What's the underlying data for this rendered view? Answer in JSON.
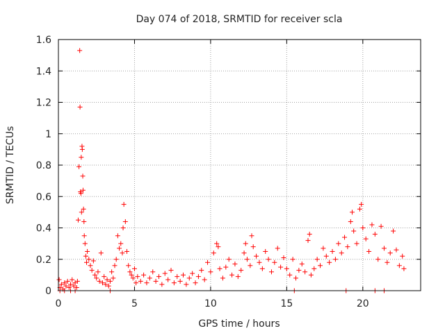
{
  "chart_data": {
    "type": "scatter",
    "title": "Day 074 of 2018, SRMTID for receiver scla",
    "xlabel": "GPS time / hours",
    "ylabel": "SRMTID / TECUs",
    "xlim": [
      0,
      23.8
    ],
    "ylim": [
      0,
      1.6
    ],
    "x_ticks": [
      0,
      5,
      10,
      15,
      20
    ],
    "x_tick_labels": [
      "0",
      "5",
      "10",
      "15",
      "20"
    ],
    "y_ticks": [
      0,
      0.2,
      0.4,
      0.6,
      0.8,
      1,
      1.2,
      1.4,
      1.6
    ],
    "y_tick_labels": [
      "0",
      "0.2",
      "0.4",
      "0.6",
      "0.8",
      "1",
      "1.2",
      "1.4",
      "1.6"
    ],
    "grid": true,
    "marker": "+",
    "color": "#ff0000",
    "series": [
      {
        "name": "SRMTID",
        "points": [
          [
            0.05,
            0.07
          ],
          [
            0.1,
            0.02
          ],
          [
            0.2,
            0.04
          ],
          [
            0.3,
            0.01
          ],
          [
            0.4,
            0.05
          ],
          [
            0.5,
            0.03
          ],
          [
            0.6,
            0.06
          ],
          [
            0.7,
            0.02
          ],
          [
            0.8,
            0.04
          ],
          [
            0.9,
            0.07
          ],
          [
            1.0,
            0.03
          ],
          [
            1.1,
            0.05
          ],
          [
            1.2,
            0.02
          ],
          [
            1.25,
            0.06
          ],
          [
            1.3,
            0.45
          ],
          [
            1.35,
            0.79
          ],
          [
            1.4,
            1.53
          ],
          [
            1.42,
            1.17
          ],
          [
            1.45,
            0.63
          ],
          [
            1.48,
            0.62
          ],
          [
            1.5,
            0.85
          ],
          [
            1.52,
            0.5
          ],
          [
            1.55,
            0.92
          ],
          [
            1.57,
            0.9
          ],
          [
            1.6,
            0.73
          ],
          [
            1.62,
            0.64
          ],
          [
            1.65,
            0.52
          ],
          [
            1.68,
            0.44
          ],
          [
            1.7,
            0.35
          ],
          [
            1.75,
            0.3
          ],
          [
            1.8,
            0.22
          ],
          [
            1.85,
            0.18
          ],
          [
            1.9,
            0.25
          ],
          [
            2.0,
            0.2
          ],
          [
            2.1,
            0.16
          ],
          [
            2.2,
            0.13
          ],
          [
            2.3,
            0.19
          ],
          [
            2.4,
            0.1
          ],
          [
            2.5,
            0.08
          ],
          [
            2.6,
            0.12
          ],
          [
            2.7,
            0.06
          ],
          [
            2.8,
            0.24
          ],
          [
            2.9,
            0.05
          ],
          [
            3.0,
            0.09
          ],
          [
            3.1,
            0.04
          ],
          [
            3.2,
            0.07
          ],
          [
            3.3,
            0.03
          ],
          [
            3.4,
            0.06
          ],
          [
            3.5,
            0.12
          ],
          [
            3.6,
            0.08
          ],
          [
            3.7,
            0.16
          ],
          [
            3.8,
            0.2
          ],
          [
            3.9,
            0.35
          ],
          [
            4.0,
            0.27
          ],
          [
            4.1,
            0.3
          ],
          [
            4.2,
            0.24
          ],
          [
            4.25,
            0.4
          ],
          [
            4.3,
            0.55
          ],
          [
            4.4,
            0.44
          ],
          [
            4.5,
            0.25
          ],
          [
            4.6,
            0.16
          ],
          [
            4.7,
            0.12
          ],
          [
            4.8,
            0.1
          ],
          [
            4.9,
            0.08
          ],
          [
            5.0,
            0.14
          ],
          [
            5.1,
            0.05
          ],
          [
            5.2,
            0.09
          ],
          [
            5.4,
            0.06
          ],
          [
            5.6,
            0.1
          ],
          [
            5.8,
            0.05
          ],
          [
            6.0,
            0.08
          ],
          [
            6.2,
            0.12
          ],
          [
            6.4,
            0.06
          ],
          [
            6.6,
            0.09
          ],
          [
            6.8,
            0.04
          ],
          [
            7.0,
            0.11
          ],
          [
            7.2,
            0.07
          ],
          [
            7.4,
            0.13
          ],
          [
            7.6,
            0.05
          ],
          [
            7.8,
            0.09
          ],
          [
            8.0,
            0.06
          ],
          [
            8.2,
            0.1
          ],
          [
            8.4,
            0.04
          ],
          [
            8.6,
            0.08
          ],
          [
            8.8,
            0.11
          ],
          [
            9.0,
            0.05
          ],
          [
            9.2,
            0.09
          ],
          [
            9.4,
            0.13
          ],
          [
            9.6,
            0.07
          ],
          [
            9.8,
            0.18
          ],
          [
            10.0,
            0.12
          ],
          [
            10.2,
            0.24
          ],
          [
            10.4,
            0.3
          ],
          [
            10.5,
            0.28
          ],
          [
            10.6,
            0.14
          ],
          [
            10.8,
            0.08
          ],
          [
            11.0,
            0.15
          ],
          [
            11.2,
            0.2
          ],
          [
            11.4,
            0.1
          ],
          [
            11.6,
            0.17
          ],
          [
            11.8,
            0.09
          ],
          [
            12.0,
            0.13
          ],
          [
            12.2,
            0.24
          ],
          [
            12.3,
            0.3
          ],
          [
            12.4,
            0.2
          ],
          [
            12.6,
            0.16
          ],
          [
            12.7,
            0.35
          ],
          [
            12.8,
            0.28
          ],
          [
            13.0,
            0.22
          ],
          [
            13.2,
            0.18
          ],
          [
            13.4,
            0.14
          ],
          [
            13.6,
            0.25
          ],
          [
            13.8,
            0.2
          ],
          [
            14.0,
            0.12
          ],
          [
            14.2,
            0.18
          ],
          [
            14.4,
            0.27
          ],
          [
            14.6,
            0.15
          ],
          [
            14.8,
            0.21
          ],
          [
            15.0,
            0.14
          ],
          [
            15.2,
            0.1
          ],
          [
            15.4,
            0.2
          ],
          [
            15.6,
            0.08
          ],
          [
            15.8,
            0.13
          ],
          [
            16.0,
            0.17
          ],
          [
            16.2,
            0.12
          ],
          [
            16.4,
            0.32
          ],
          [
            16.5,
            0.36
          ],
          [
            16.6,
            0.1
          ],
          [
            16.8,
            0.14
          ],
          [
            17.0,
            0.2
          ],
          [
            17.2,
            0.16
          ],
          [
            17.4,
            0.27
          ],
          [
            17.6,
            0.22
          ],
          [
            17.8,
            0.18
          ],
          [
            18.0,
            0.25
          ],
          [
            18.2,
            0.2
          ],
          [
            18.4,
            0.3
          ],
          [
            18.6,
            0.24
          ],
          [
            18.8,
            0.34
          ],
          [
            19.0,
            0.28
          ],
          [
            19.2,
            0.44
          ],
          [
            19.3,
            0.5
          ],
          [
            19.4,
            0.38
          ],
          [
            19.6,
            0.3
          ],
          [
            19.8,
            0.52
          ],
          [
            19.9,
            0.55
          ],
          [
            20.0,
            0.4
          ],
          [
            20.2,
            0.33
          ],
          [
            20.4,
            0.25
          ],
          [
            20.6,
            0.42
          ],
          [
            20.8,
            0.36
          ],
          [
            21.0,
            0.2
          ],
          [
            21.2,
            0.41
          ],
          [
            21.4,
            0.27
          ],
          [
            21.6,
            0.18
          ],
          [
            21.8,
            0.24
          ],
          [
            22.0,
            0.38
          ],
          [
            22.2,
            0.26
          ],
          [
            22.4,
            0.16
          ],
          [
            22.6,
            0.22
          ],
          [
            22.7,
            0.14
          ],
          [
            0.1,
            0.0
          ],
          [
            0.4,
            0.0
          ],
          [
            0.8,
            0.0
          ],
          [
            1.1,
            0.0
          ],
          [
            3.4,
            0.0
          ],
          [
            15.5,
            0.0
          ],
          [
            18.9,
            0.0
          ],
          [
            20.8,
            0.0
          ],
          [
            21.4,
            0.0
          ]
        ]
      }
    ]
  }
}
